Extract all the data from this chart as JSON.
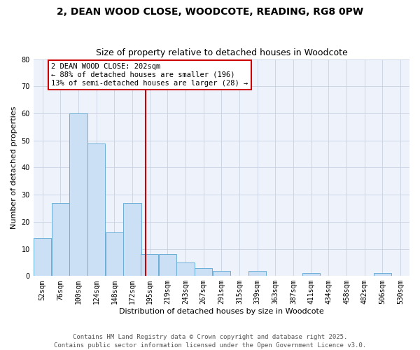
{
  "title": "2, DEAN WOOD CLOSE, WOODCOTE, READING, RG8 0PW",
  "subtitle": "Size of property relative to detached houses in Woodcote",
  "xlabel": "Distribution of detached houses by size in Woodcote",
  "ylabel": "Number of detached properties",
  "bin_labels": [
    "52sqm",
    "76sqm",
    "100sqm",
    "124sqm",
    "148sqm",
    "172sqm",
    "195sqm",
    "219sqm",
    "243sqm",
    "267sqm",
    "291sqm",
    "315sqm",
    "339sqm",
    "363sqm",
    "387sqm",
    "411sqm",
    "434sqm",
    "458sqm",
    "482sqm",
    "506sqm",
    "530sqm"
  ],
  "bin_edges": [
    52,
    76,
    100,
    124,
    148,
    172,
    195,
    219,
    243,
    267,
    291,
    315,
    339,
    363,
    387,
    411,
    434,
    458,
    482,
    506,
    530
  ],
  "bar_heights": [
    14,
    27,
    60,
    49,
    16,
    27,
    8,
    8,
    5,
    3,
    2,
    0,
    2,
    0,
    0,
    1,
    0,
    0,
    0,
    1,
    0
  ],
  "bar_color": "#cce0f5",
  "bar_edge_color": "#6baed6",
  "grid_color": "#c8d0e0",
  "bg_color": "#eef2fb",
  "vline_x": 202,
  "vline_color": "#cc0000",
  "annotation_box_text": "2 DEAN WOOD CLOSE: 202sqm\n← 88% of detached houses are smaller (196)\n13% of semi-detached houses are larger (28) →",
  "annotation_box_color": "#cc0000",
  "ylim": [
    0,
    80
  ],
  "yticks": [
    0,
    10,
    20,
    30,
    40,
    50,
    60,
    70,
    80
  ],
  "footer_line1": "Contains HM Land Registry data © Crown copyright and database right 2025.",
  "footer_line2": "Contains public sector information licensed under the Open Government Licence v3.0.",
  "title_fontsize": 10,
  "subtitle_fontsize": 9,
  "axis_label_fontsize": 8,
  "tick_fontsize": 7,
  "annotation_fontsize": 7.5,
  "footer_fontsize": 6.5
}
